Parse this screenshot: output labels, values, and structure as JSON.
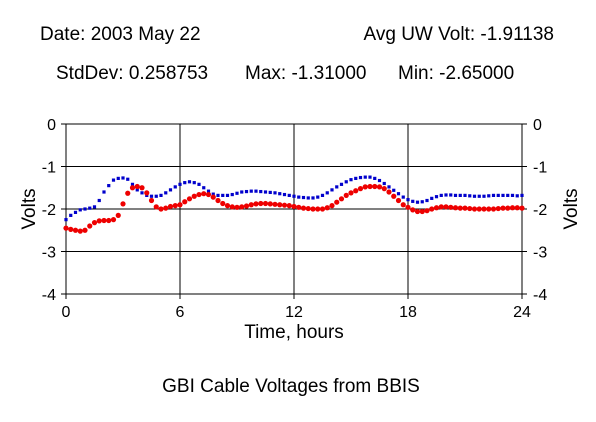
{
  "header": {
    "date": "Date: 2003 May 22",
    "avg": "Avg UW Volt: -1.91138",
    "stddev": "StdDev: 0.258753",
    "max": "Max: -1.31000",
    "min": "Min: -2.65000"
  },
  "colors": {
    "blue_series": "#0000cc",
    "red_series": "#ee0000",
    "axis": "#000000"
  },
  "chart_data": {
    "type": "scatter",
    "title": "GBI Cable Voltages from BBIS",
    "xlabel": "Time, hours",
    "ylabel_left": "Volts",
    "ylabel_right": "Volts",
    "xlim": [
      0,
      24
    ],
    "ylim": [
      -4,
      0
    ],
    "xticks": [
      0,
      6,
      12,
      18,
      24
    ],
    "yticks": [
      0,
      -1,
      -2,
      -3,
      -4
    ],
    "grid": true,
    "series": [
      {
        "color": "#0000cc",
        "points": [
          [
            0,
            -2.25
          ],
          [
            0.25,
            -2.15
          ],
          [
            0.5,
            -2.08
          ],
          [
            0.75,
            -2.02
          ],
          [
            1.0,
            -2.0
          ],
          [
            1.25,
            -1.98
          ],
          [
            1.5,
            -1.95
          ],
          [
            1.75,
            -1.8
          ],
          [
            2.0,
            -1.6
          ],
          [
            2.25,
            -1.45
          ],
          [
            2.5,
            -1.32
          ],
          [
            2.75,
            -1.28
          ],
          [
            3.0,
            -1.27
          ],
          [
            3.25,
            -1.3
          ],
          [
            3.5,
            -1.42
          ],
          [
            3.75,
            -1.55
          ],
          [
            4.0,
            -1.62
          ],
          [
            4.25,
            -1.68
          ],
          [
            4.5,
            -1.7
          ],
          [
            4.75,
            -1.7
          ],
          [
            5.0,
            -1.68
          ],
          [
            5.25,
            -1.62
          ],
          [
            5.5,
            -1.55
          ],
          [
            5.75,
            -1.48
          ],
          [
            6.0,
            -1.42
          ],
          [
            6.25,
            -1.38
          ],
          [
            6.5,
            -1.36
          ],
          [
            6.75,
            -1.38
          ],
          [
            7.0,
            -1.42
          ],
          [
            7.25,
            -1.5
          ],
          [
            7.5,
            -1.58
          ],
          [
            7.75,
            -1.65
          ],
          [
            8.0,
            -1.68
          ],
          [
            8.25,
            -1.68
          ],
          [
            8.5,
            -1.68
          ],
          [
            8.75,
            -1.66
          ],
          [
            9.0,
            -1.63
          ],
          [
            9.25,
            -1.6
          ],
          [
            9.5,
            -1.59
          ],
          [
            9.75,
            -1.58
          ],
          [
            10.0,
            -1.58
          ],
          [
            10.25,
            -1.59
          ],
          [
            10.5,
            -1.6
          ],
          [
            10.75,
            -1.61
          ],
          [
            11.0,
            -1.62
          ],
          [
            11.25,
            -1.64
          ],
          [
            11.5,
            -1.66
          ],
          [
            11.75,
            -1.68
          ],
          [
            12.0,
            -1.7
          ],
          [
            12.25,
            -1.72
          ],
          [
            12.5,
            -1.73
          ],
          [
            12.75,
            -1.74
          ],
          [
            13.0,
            -1.74
          ],
          [
            13.25,
            -1.72
          ],
          [
            13.5,
            -1.68
          ],
          [
            13.75,
            -1.62
          ],
          [
            14.0,
            -1.55
          ],
          [
            14.25,
            -1.48
          ],
          [
            14.5,
            -1.42
          ],
          [
            14.75,
            -1.36
          ],
          [
            15.0,
            -1.31
          ],
          [
            15.25,
            -1.28
          ],
          [
            15.5,
            -1.26
          ],
          [
            15.75,
            -1.25
          ],
          [
            16.0,
            -1.25
          ],
          [
            16.25,
            -1.28
          ],
          [
            16.5,
            -1.33
          ],
          [
            16.75,
            -1.4
          ],
          [
            17.0,
            -1.48
          ],
          [
            17.25,
            -1.56
          ],
          [
            17.5,
            -1.64
          ],
          [
            17.75,
            -1.72
          ],
          [
            18.0,
            -1.78
          ],
          [
            18.25,
            -1.82
          ],
          [
            18.5,
            -1.84
          ],
          [
            18.75,
            -1.83
          ],
          [
            19.0,
            -1.8
          ],
          [
            19.25,
            -1.75
          ],
          [
            19.5,
            -1.71
          ],
          [
            19.75,
            -1.68
          ],
          [
            20.0,
            -1.67
          ],
          [
            20.25,
            -1.67
          ],
          [
            20.5,
            -1.68
          ],
          [
            20.75,
            -1.68
          ],
          [
            21.0,
            -1.68
          ],
          [
            21.25,
            -1.69
          ],
          [
            21.5,
            -1.7
          ],
          [
            21.75,
            -1.7
          ],
          [
            22.0,
            -1.7
          ],
          [
            22.25,
            -1.69
          ],
          [
            22.5,
            -1.68
          ],
          [
            22.75,
            -1.68
          ],
          [
            23.0,
            -1.68
          ],
          [
            23.25,
            -1.68
          ],
          [
            23.5,
            -1.68
          ],
          [
            23.75,
            -1.69
          ],
          [
            24.0,
            -1.68
          ]
        ]
      },
      {
        "color": "#ee0000",
        "points": [
          [
            0,
            -2.45
          ],
          [
            0.25,
            -2.48
          ],
          [
            0.5,
            -2.5
          ],
          [
            0.75,
            -2.52
          ],
          [
            1.0,
            -2.5
          ],
          [
            1.25,
            -2.4
          ],
          [
            1.5,
            -2.32
          ],
          [
            1.75,
            -2.28
          ],
          [
            2.0,
            -2.27
          ],
          [
            2.25,
            -2.27
          ],
          [
            2.5,
            -2.25
          ],
          [
            2.75,
            -2.15
          ],
          [
            3.0,
            -1.88
          ],
          [
            3.25,
            -1.63
          ],
          [
            3.5,
            -1.5
          ],
          [
            3.75,
            -1.47
          ],
          [
            4.0,
            -1.5
          ],
          [
            4.25,
            -1.62
          ],
          [
            4.5,
            -1.8
          ],
          [
            4.75,
            -1.95
          ],
          [
            5.0,
            -2.0
          ],
          [
            5.25,
            -1.98
          ],
          [
            5.5,
            -1.94
          ],
          [
            5.75,
            -1.92
          ],
          [
            6.0,
            -1.9
          ],
          [
            6.25,
            -1.83
          ],
          [
            6.5,
            -1.76
          ],
          [
            6.75,
            -1.7
          ],
          [
            7.0,
            -1.66
          ],
          [
            7.25,
            -1.64
          ],
          [
            7.5,
            -1.66
          ],
          [
            7.75,
            -1.72
          ],
          [
            8.0,
            -1.8
          ],
          [
            8.25,
            -1.87
          ],
          [
            8.5,
            -1.92
          ],
          [
            8.75,
            -1.95
          ],
          [
            9.0,
            -1.96
          ],
          [
            9.25,
            -1.95
          ],
          [
            9.5,
            -1.93
          ],
          [
            9.75,
            -1.9
          ],
          [
            10.0,
            -1.88
          ],
          [
            10.25,
            -1.87
          ],
          [
            10.5,
            -1.87
          ],
          [
            10.75,
            -1.88
          ],
          [
            11.0,
            -1.89
          ],
          [
            11.25,
            -1.9
          ],
          [
            11.5,
            -1.91
          ],
          [
            11.75,
            -1.92
          ],
          [
            12.0,
            -1.94
          ],
          [
            12.25,
            -1.96
          ],
          [
            12.5,
            -1.98
          ],
          [
            12.75,
            -1.99
          ],
          [
            13.0,
            -2.0
          ],
          [
            13.25,
            -2.0
          ],
          [
            13.5,
            -2.0
          ],
          [
            13.75,
            -1.97
          ],
          [
            14.0,
            -1.92
          ],
          [
            14.25,
            -1.84
          ],
          [
            14.5,
            -1.76
          ],
          [
            14.75,
            -1.68
          ],
          [
            15.0,
            -1.62
          ],
          [
            15.25,
            -1.57
          ],
          [
            15.5,
            -1.52
          ],
          [
            15.75,
            -1.48
          ],
          [
            16.0,
            -1.47
          ],
          [
            16.25,
            -1.47
          ],
          [
            16.5,
            -1.48
          ],
          [
            16.75,
            -1.52
          ],
          [
            17.0,
            -1.6
          ],
          [
            17.25,
            -1.7
          ],
          [
            17.5,
            -1.8
          ],
          [
            17.75,
            -1.9
          ],
          [
            18.0,
            -1.96
          ],
          [
            18.25,
            -2.02
          ],
          [
            18.5,
            -2.06
          ],
          [
            18.75,
            -2.06
          ],
          [
            19.0,
            -2.04
          ],
          [
            19.25,
            -2.0
          ],
          [
            19.5,
            -1.97
          ],
          [
            19.75,
            -1.95
          ],
          [
            20.0,
            -1.95
          ],
          [
            20.25,
            -1.96
          ],
          [
            20.5,
            -1.97
          ],
          [
            20.75,
            -1.98
          ],
          [
            21.0,
            -1.98
          ],
          [
            21.25,
            -1.99
          ],
          [
            21.5,
            -2.0
          ],
          [
            21.75,
            -2.0
          ],
          [
            22.0,
            -2.0
          ],
          [
            22.25,
            -2.0
          ],
          [
            22.5,
            -2.0
          ],
          [
            22.75,
            -1.99
          ],
          [
            23.0,
            -1.98
          ],
          [
            23.25,
            -1.98
          ],
          [
            23.5,
            -1.97
          ],
          [
            23.75,
            -1.97
          ],
          [
            24.0,
            -1.98
          ]
        ]
      }
    ]
  }
}
